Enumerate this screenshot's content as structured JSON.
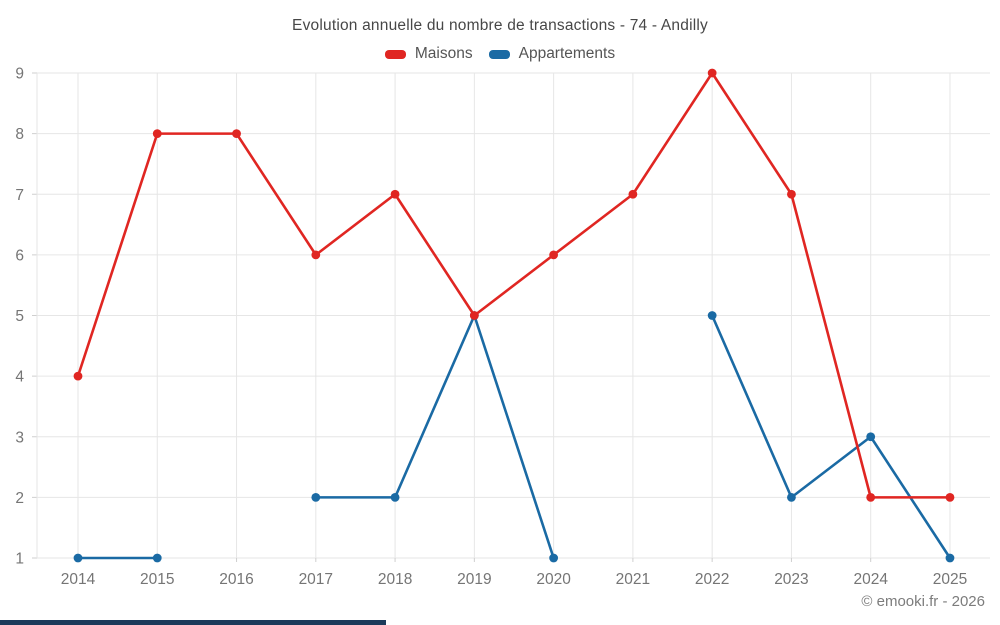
{
  "title": "Evolution annuelle du nombre de transactions - 74 - Andilly",
  "legend": [
    {
      "label": "Maisons",
      "color": "#e02622"
    },
    {
      "label": "Appartements",
      "color": "#1a6aa4"
    }
  ],
  "footer": {
    "copyright": "© emooki.fr - 2026"
  },
  "colors": {
    "maisons": "#e02622",
    "appartements": "#1a6aa4",
    "grid": "#e6e6e6",
    "tick": "#cfcfcf",
    "axis_label": "#757575",
    "title_text": "#474747",
    "legend_text": "#555555",
    "copyright_text": "#7c7c7c",
    "bottom_bar": "#1b3a5a"
  },
  "chart_data": {
    "type": "line",
    "title": "Evolution annuelle du nombre de transactions - 74 - Andilly",
    "x": [
      2014,
      2015,
      2016,
      2017,
      2018,
      2019,
      2020,
      2021,
      2022,
      2023,
      2024,
      2025
    ],
    "series": [
      {
        "name": "Maisons",
        "color": "#e02622",
        "values": [
          4,
          8,
          8,
          6,
          7,
          5,
          6,
          7,
          9,
          7,
          2,
          2
        ]
      },
      {
        "name": "Appartements",
        "color": "#1a6aa4",
        "values": [
          1,
          1,
          null,
          2,
          2,
          5,
          1,
          null,
          5,
          2,
          3,
          1
        ]
      }
    ],
    "xlabel": "",
    "ylabel": "",
    "ylim": [
      1,
      9
    ],
    "yticks": [
      1,
      2,
      3,
      4,
      5,
      6,
      7,
      8,
      9
    ],
    "grid": true,
    "legend_position": "top",
    "markers": true
  }
}
